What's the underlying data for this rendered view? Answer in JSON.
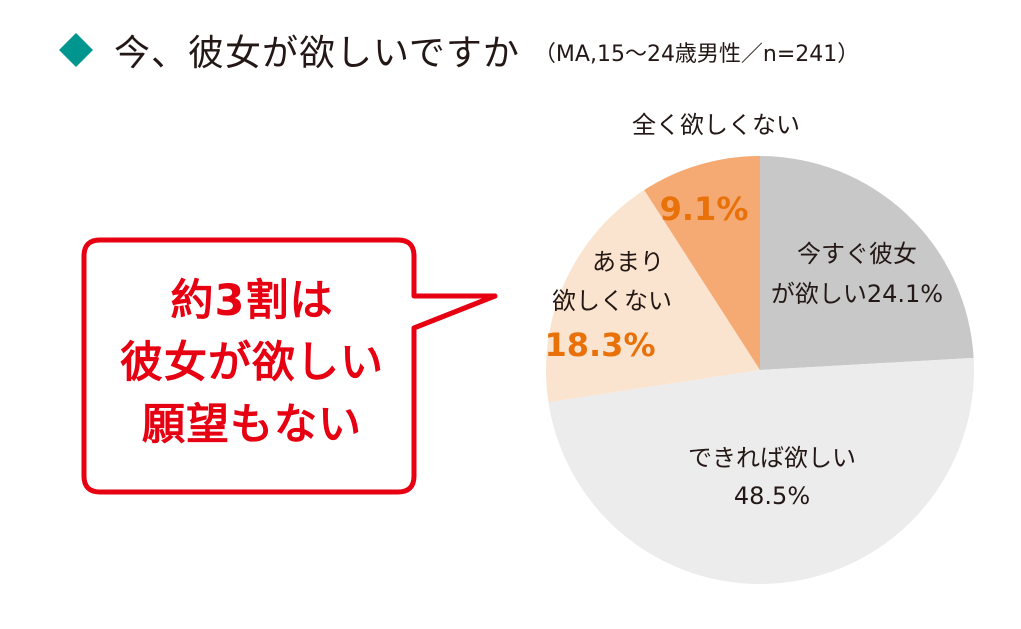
{
  "header": {
    "title": "今、彼女が欲しいですか",
    "subtitle": "（MA,15〜24歳男性／n=241）"
  },
  "callout": {
    "lines": [
      "約3割は",
      "彼女が欲しい",
      "願望もない"
    ]
  },
  "colors": {
    "accent_diamond": "#00968f",
    "callout_red": "#e60012",
    "highlight_orange": "#e8710a"
  },
  "chart_data": {
    "type": "pie",
    "title": "今、彼女が欲しいですか",
    "slices": [
      {
        "label": "今すぐ彼女が欲しい",
        "value": 24.1,
        "value_label": "24.1%",
        "color": "#c8c8c8"
      },
      {
        "label": "できれば欲しい",
        "value": 48.5,
        "value_label": "48.5%",
        "color": "#ececec"
      },
      {
        "label": "あまり欲しくない",
        "value": 18.3,
        "value_label": "18.3%",
        "color": "#fbe4cf"
      },
      {
        "label": "全く欲しくない",
        "value": 9.1,
        "value_label": "9.1%",
        "color": "#f4aa72"
      }
    ]
  }
}
